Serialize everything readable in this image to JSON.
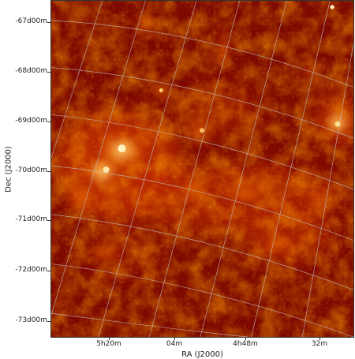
{
  "axes": {
    "xlabel": "RA (J2000)",
    "ylabel": "Dec (J2000)",
    "yticks": [
      "-67d00m",
      "-68d00m",
      "-69d00m",
      "-70d00m",
      "-71d00m",
      "-72d00m",
      "-73d00m"
    ],
    "xticks": [
      "5h20m",
      "04m",
      "4h48m",
      "32m"
    ]
  },
  "image": {
    "description_colormap": [
      "#5a0000",
      "#8a0c00",
      "#c02a00",
      "#e85a00",
      "#ff9a20",
      "#ffe080"
    ],
    "grid_color": "#c8c8c8"
  }
}
